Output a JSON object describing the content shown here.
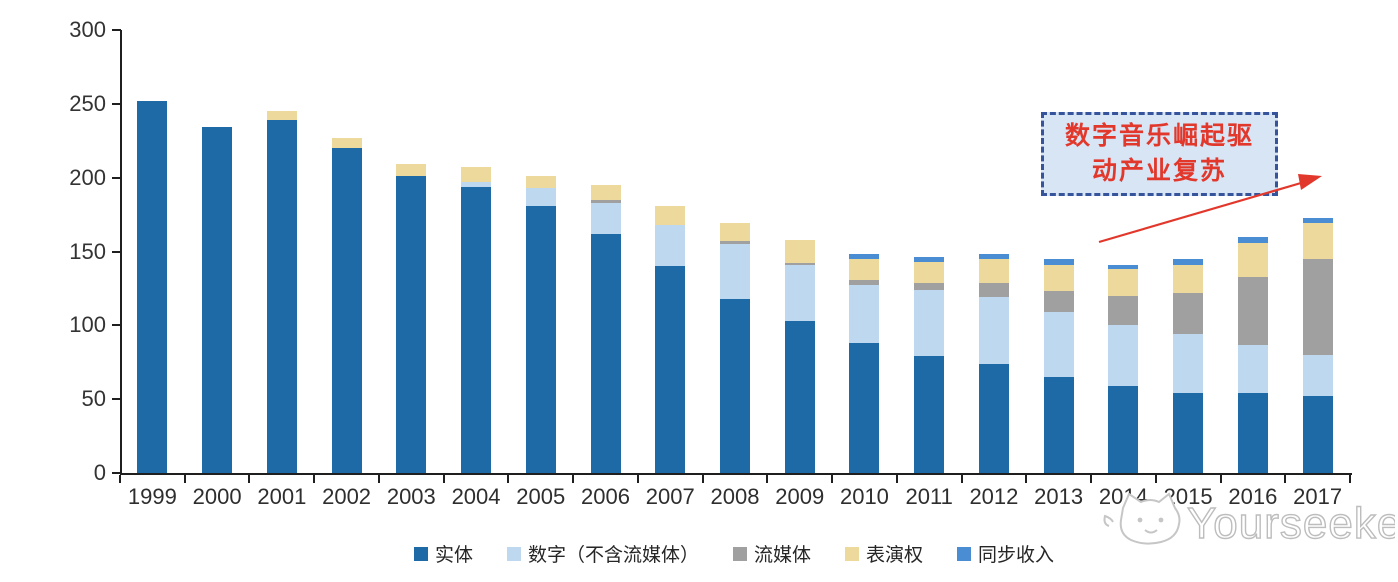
{
  "chart_data": {
    "type": "bar",
    "stacked": true,
    "title": "",
    "xlabel": "",
    "ylabel": "",
    "ylim": [
      0,
      300
    ],
    "yticks": [
      0,
      50,
      100,
      150,
      200,
      250,
      300
    ],
    "grid": false,
    "legend_position": "bottom",
    "categories": [
      "1999",
      "2000",
      "2001",
      "2002",
      "2003",
      "2004",
      "2005",
      "2006",
      "2007",
      "2008",
      "2009",
      "2010",
      "2011",
      "2012",
      "2013",
      "2014",
      "2015",
      "2016",
      "2017"
    ],
    "series": [
      {
        "name": "实体",
        "color": "#1e6aa6",
        "values": [
          252,
          234,
          239,
          220,
          201,
          194,
          181,
          162,
          140,
          118,
          103,
          88,
          79,
          74,
          65,
          59,
          54,
          54,
          52
        ]
      },
      {
        "name": "数字（不含流媒体）",
        "color": "#bed8ef",
        "values": [
          0,
          0,
          0,
          0,
          0,
          3,
          12,
          21,
          28,
          37,
          38,
          39,
          45,
          45,
          44,
          41,
          40,
          33,
          28
        ]
      },
      {
        "name": "流媒体",
        "color": "#a0a0a0",
        "values": [
          0,
          0,
          0,
          0,
          0,
          0,
          0,
          2,
          0,
          2,
          1,
          4,
          5,
          10,
          14,
          20,
          28,
          46,
          65
        ]
      },
      {
        "name": "表演权",
        "color": "#edd99b",
        "values": [
          0,
          0,
          6,
          7,
          8,
          10,
          8,
          10,
          13,
          12,
          16,
          14,
          14,
          16,
          18,
          18,
          19,
          23,
          24
        ]
      },
      {
        "name": "同步收入",
        "color": "#4a8dd2",
        "values": [
          0,
          0,
          0,
          0,
          0,
          0,
          0,
          0,
          0,
          0,
          0,
          3,
          3,
          3,
          4,
          3,
          4,
          4,
          4
        ]
      }
    ]
  },
  "annotation": {
    "text": "数字音乐崛起驱动产业复苏",
    "line1": "数字音乐崛起驱",
    "line2": "动产业复苏",
    "box_fill_color": "#d8e5f5",
    "box_border_color": "#35549b",
    "text_color": "#e2382c",
    "arrow_color": "#e2382c"
  },
  "watermark": {
    "text": "Yourseeker",
    "color": "#bdbdbd",
    "logo": "cat-logo"
  },
  "axis_colors": {
    "axis_line": "#1f1f1f",
    "tick_label": "#333333"
  }
}
